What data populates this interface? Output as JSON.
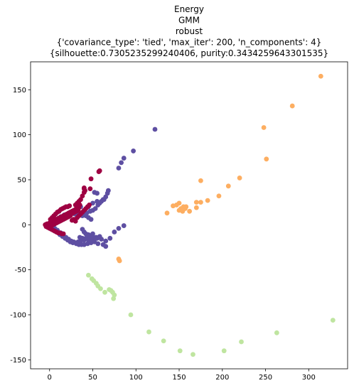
{
  "chart_data": {
    "type": "scatter",
    "title_lines": [
      "Energy",
      "GMM",
      "robust",
      "{'covariance_type': 'tied', 'max_iter': 200, 'n_components': 4}",
      "{silhouette:0.7305235299240406, purity:0.3434259643301535}"
    ],
    "xlim": [
      -22,
      345
    ],
    "ylim": [
      -160,
      181
    ],
    "xticks": [
      0,
      50,
      100,
      150,
      200,
      250,
      300
    ],
    "yticks": [
      -150,
      -100,
      -50,
      0,
      50,
      100,
      150
    ],
    "grid": false,
    "series": [
      {
        "color": "#5e4fa2",
        "points": [
          [
            5,
            -5
          ],
          [
            8,
            -8
          ],
          [
            12,
            -11
          ],
          [
            15,
            -13
          ],
          [
            18,
            -15
          ],
          [
            21,
            -17
          ],
          [
            24,
            -19
          ],
          [
            27,
            -20
          ],
          [
            30,
            -20
          ],
          [
            33,
            -19
          ],
          [
            36,
            -18
          ],
          [
            40,
            -17
          ],
          [
            45,
            -17
          ],
          [
            50,
            -17
          ],
          [
            55,
            -15
          ],
          [
            60,
            -16
          ],
          [
            65,
            -18
          ],
          [
            70,
            -15
          ],
          [
            75,
            -8
          ],
          [
            80,
            -4
          ],
          [
            86,
            -1
          ],
          [
            3,
            -2
          ],
          [
            6,
            -4
          ],
          [
            9,
            -6
          ],
          [
            13,
            -9
          ],
          [
            16,
            -12
          ],
          [
            19,
            -14
          ],
          [
            22,
            -16
          ],
          [
            25,
            -18
          ],
          [
            28,
            -19
          ],
          [
            31,
            -21
          ],
          [
            34,
            -22
          ],
          [
            37,
            -22
          ],
          [
            40,
            -22
          ],
          [
            44,
            -21
          ],
          [
            48,
            -20
          ],
          [
            52,
            -19
          ],
          [
            56,
            -21
          ],
          [
            62,
            -22
          ],
          [
            65,
            -24
          ],
          [
            35,
            -14
          ],
          [
            38,
            -15
          ],
          [
            42,
            -15
          ],
          [
            46,
            -14
          ],
          [
            50,
            -13
          ],
          [
            54,
            -14
          ],
          [
            58,
            -13
          ],
          [
            4,
            2
          ],
          [
            7,
            5
          ],
          [
            10,
            7
          ],
          [
            13,
            9
          ],
          [
            17,
            11
          ],
          [
            21,
            12
          ],
          [
            25,
            12
          ],
          [
            29,
            12
          ],
          [
            33,
            12
          ],
          [
            36,
            11
          ],
          [
            38,
            10
          ],
          [
            40,
            11
          ],
          [
            43,
            13
          ],
          [
            47,
            15
          ],
          [
            50,
            16
          ],
          [
            53,
            18
          ],
          [
            56,
            22
          ],
          [
            58,
            24
          ],
          [
            60,
            26
          ],
          [
            62,
            28
          ],
          [
            63,
            28
          ],
          [
            65,
            31
          ],
          [
            67,
            35
          ],
          [
            68,
            38
          ],
          [
            42,
            10
          ],
          [
            45,
            8
          ],
          [
            48,
            6
          ],
          [
            38,
            -5
          ],
          [
            36,
            20
          ],
          [
            45,
            20
          ],
          [
            50,
            24
          ],
          [
            55,
            26
          ],
          [
            52,
            36
          ],
          [
            55,
            35
          ],
          [
            40,
            -8
          ],
          [
            42,
            -10
          ],
          [
            45,
            -11
          ],
          [
            48,
            -12
          ],
          [
            50,
            -10
          ],
          [
            80,
            63
          ],
          [
            83,
            69
          ],
          [
            86,
            74
          ],
          [
            97,
            82
          ],
          [
            122,
            106
          ]
        ]
      },
      {
        "color": "#9e0142",
        "points": [
          [
            -5,
            0
          ],
          [
            -3,
            1
          ],
          [
            -1,
            0
          ],
          [
            0,
            2
          ],
          [
            1,
            -1
          ],
          [
            2,
            3
          ],
          [
            3,
            1
          ],
          [
            4,
            4
          ],
          [
            5,
            2
          ],
          [
            6,
            5
          ],
          [
            7,
            3
          ],
          [
            8,
            6
          ],
          [
            9,
            4
          ],
          [
            10,
            7
          ],
          [
            11,
            5
          ],
          [
            12,
            8
          ],
          [
            13,
            6
          ],
          [
            14,
            9
          ],
          [
            15,
            7
          ],
          [
            16,
            10
          ],
          [
            17,
            8
          ],
          [
            18,
            11
          ],
          [
            19,
            9
          ],
          [
            20,
            12
          ],
          [
            21,
            10
          ],
          [
            22,
            13
          ],
          [
            23,
            11
          ],
          [
            24,
            14
          ],
          [
            25,
            12
          ],
          [
            26,
            15
          ],
          [
            27,
            13
          ],
          [
            28,
            16
          ],
          [
            29,
            14
          ],
          [
            30,
            17
          ],
          [
            31,
            15
          ],
          [
            32,
            18
          ],
          [
            33,
            16
          ],
          [
            34,
            19
          ],
          [
            -4,
            -2
          ],
          [
            -2,
            -3
          ],
          [
            0,
            -4
          ],
          [
            2,
            -5
          ],
          [
            4,
            -6
          ],
          [
            6,
            -7
          ],
          [
            8,
            -8
          ],
          [
            10,
            -9
          ],
          [
            12,
            -9
          ],
          [
            14,
            -10
          ],
          [
            16,
            -10
          ],
          [
            1,
            6
          ],
          [
            3,
            8
          ],
          [
            5,
            10
          ],
          [
            7,
            12
          ],
          [
            9,
            14
          ],
          [
            11,
            15
          ],
          [
            13,
            17
          ],
          [
            15,
            18
          ],
          [
            17,
            19
          ],
          [
            19,
            20
          ],
          [
            21,
            20
          ],
          [
            23,
            21
          ],
          [
            2,
            -1
          ],
          [
            4,
            0
          ],
          [
            6,
            1
          ],
          [
            8,
            2
          ],
          [
            10,
            3
          ],
          [
            12,
            4
          ],
          [
            14,
            5
          ],
          [
            16,
            6
          ],
          [
            18,
            7
          ],
          [
            20,
            8
          ],
          [
            22,
            9
          ],
          [
            24,
            10
          ],
          [
            26,
            5
          ],
          [
            28,
            6
          ],
          [
            30,
            4
          ],
          [
            32,
            8
          ],
          [
            34,
            10
          ],
          [
            36,
            12
          ],
          [
            38,
            14
          ],
          [
            40,
            16
          ],
          [
            42,
            18
          ],
          [
            44,
            20
          ],
          [
            46,
            22
          ],
          [
            38,
            32
          ],
          [
            40,
            36
          ],
          [
            41,
            38
          ],
          [
            40,
            40
          ],
          [
            40,
            41
          ],
          [
            47,
            40
          ],
          [
            48,
            51
          ],
          [
            57,
            59
          ],
          [
            58,
            60
          ],
          [
            30,
            22
          ],
          [
            32,
            24
          ],
          [
            34,
            26
          ],
          [
            36,
            28
          ],
          [
            35,
            22
          ]
        ]
      },
      {
        "color": "#fdae61",
        "points": [
          [
            136,
            13
          ],
          [
            143,
            21
          ],
          [
            147,
            22
          ],
          [
            150,
            24
          ],
          [
            150,
            16
          ],
          [
            152,
            18
          ],
          [
            154,
            15
          ],
          [
            155,
            20
          ],
          [
            157,
            18
          ],
          [
            158,
            20
          ],
          [
            162,
            15
          ],
          [
            170,
            25
          ],
          [
            170,
            19
          ],
          [
            175,
            25
          ],
          [
            175,
            49
          ],
          [
            183,
            27
          ],
          [
            196,
            32
          ],
          [
            207,
            43
          ],
          [
            220,
            52
          ],
          [
            248,
            108
          ],
          [
            251,
            73
          ],
          [
            281,
            132
          ],
          [
            314,
            165
          ],
          [
            80,
            -38
          ],
          [
            81,
            -40
          ]
        ]
      },
      {
        "color": "#bfe5a0",
        "points": [
          [
            45,
            -56
          ],
          [
            49,
            -60
          ],
          [
            51,
            -62
          ],
          [
            54,
            -65
          ],
          [
            56,
            -68
          ],
          [
            59,
            -71
          ],
          [
            64,
            -75
          ],
          [
            69,
            -72
          ],
          [
            71,
            -73
          ],
          [
            73,
            -75
          ],
          [
            75,
            -78
          ],
          [
            74,
            -82
          ],
          [
            94,
            -100
          ],
          [
            115,
            -119
          ],
          [
            132,
            -129
          ],
          [
            151,
            -140
          ],
          [
            166,
            -144
          ],
          [
            202,
            -140
          ],
          [
            222,
            -130
          ],
          [
            263,
            -120
          ],
          [
            328,
            -106
          ]
        ]
      }
    ]
  }
}
